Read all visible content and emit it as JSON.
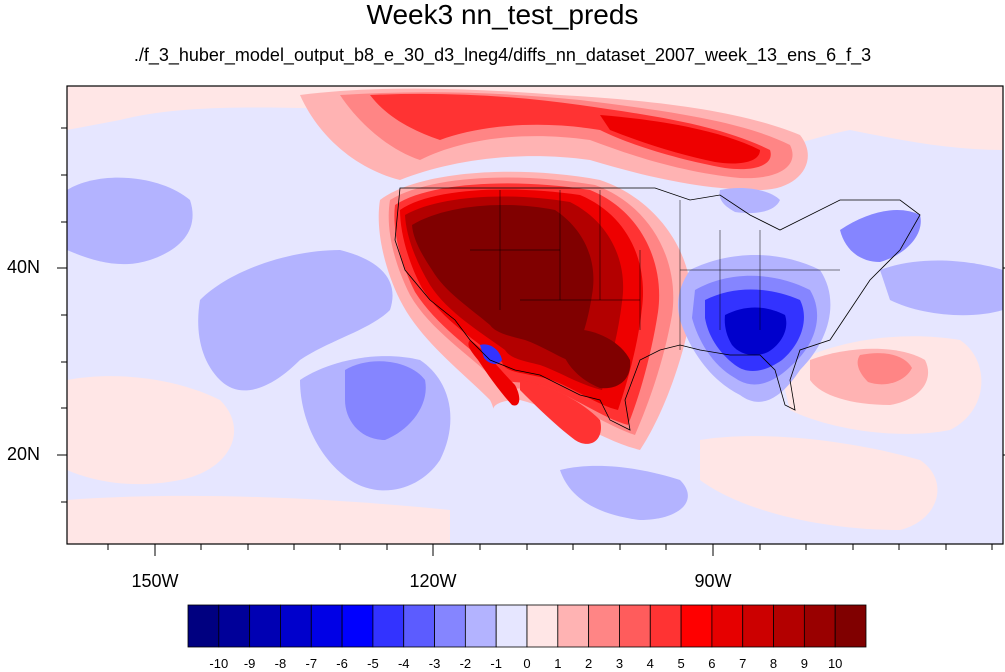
{
  "title": "Week3 nn_test_preds",
  "subtitle": "./f_3_huber_model_output_b8_e_30_d3_lneg4/diffs_nn_dataset_2007_week_13_ens_6_f_3",
  "axes": {
    "lat_labels": [
      "40N",
      "20N"
    ],
    "lon_labels": [
      "150W",
      "120W",
      "90W"
    ]
  },
  "colorbar": {
    "labels": [
      "-10",
      "-9",
      "-8",
      "-7",
      "-6",
      "-5",
      "-4",
      "-3",
      "-2",
      "-1",
      "0",
      "1",
      "2",
      "3",
      "4",
      "5",
      "6",
      "7",
      "8",
      "9",
      "10"
    ],
    "colors": [
      "#000080",
      "#000099",
      "#0000b3",
      "#0000cc",
      "#0000e6",
      "#0000ff",
      "#3333ff",
      "#5c5cff",
      "#8585ff",
      "#b3b3ff",
      "#e6e6ff",
      "#ffe6e6",
      "#ffb3b3",
      "#ff8585",
      "#ff5c5c",
      "#ff3333",
      "#ff0000",
      "#e60000",
      "#cc0000",
      "#b30000",
      "#990000",
      "#800000"
    ]
  },
  "map_fill": {
    "background": "#e6e6ff",
    "light_blue": "#b3b3ff",
    "mid_blue": "#8585ff",
    "blue": "#3333ff",
    "deep_blue": "#0000cc",
    "light_red": "#ffe6e6",
    "pink": "#ffb3b3",
    "salmon": "#ff8585",
    "red": "#ff3333",
    "bright_red": "#ee0000",
    "dark_red": "#b30000",
    "deepest_red": "#800000"
  }
}
